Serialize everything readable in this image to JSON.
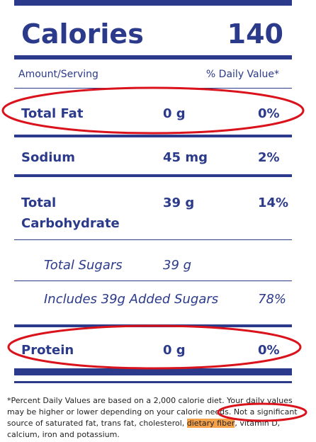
{
  "calories": {
    "label": "Calories",
    "value": "140"
  },
  "header": {
    "amount": "Amount/Serving",
    "dv": "% Daily Value*"
  },
  "rows": [
    {
      "name": "Total Fat",
      "amount": "0 g",
      "dv": "0%"
    },
    {
      "name": "Sodium",
      "amount": "45 mg",
      "dv": "2%"
    },
    {
      "name_line1": "Total",
      "name_line2": "Carbohydrate",
      "amount": "39 g",
      "dv": "14%"
    },
    {
      "name": "Total Sugars",
      "amount": "39 g",
      "dv": ""
    },
    {
      "name": "Includes 39g Added Sugars",
      "amount": "",
      "dv": "78%"
    },
    {
      "name": "Protein",
      "amount": "0 g",
      "dv": "0%"
    }
  ],
  "footnote": {
    "part1": "*Percent Daily Values are based on a 2,000 calorie diet. Your daily values may be higher or lower depending on your calorie needs. Not a significant source of saturated fat, trans fat, cholesterol, ",
    "highlight": "dietary fiber",
    "part2": ", vitamin D, calcium, iron and potassium."
  },
  "colors": {
    "brand": "#2b3a8a",
    "annotation": "#d9121b",
    "highlight": "#f5a14a"
  }
}
